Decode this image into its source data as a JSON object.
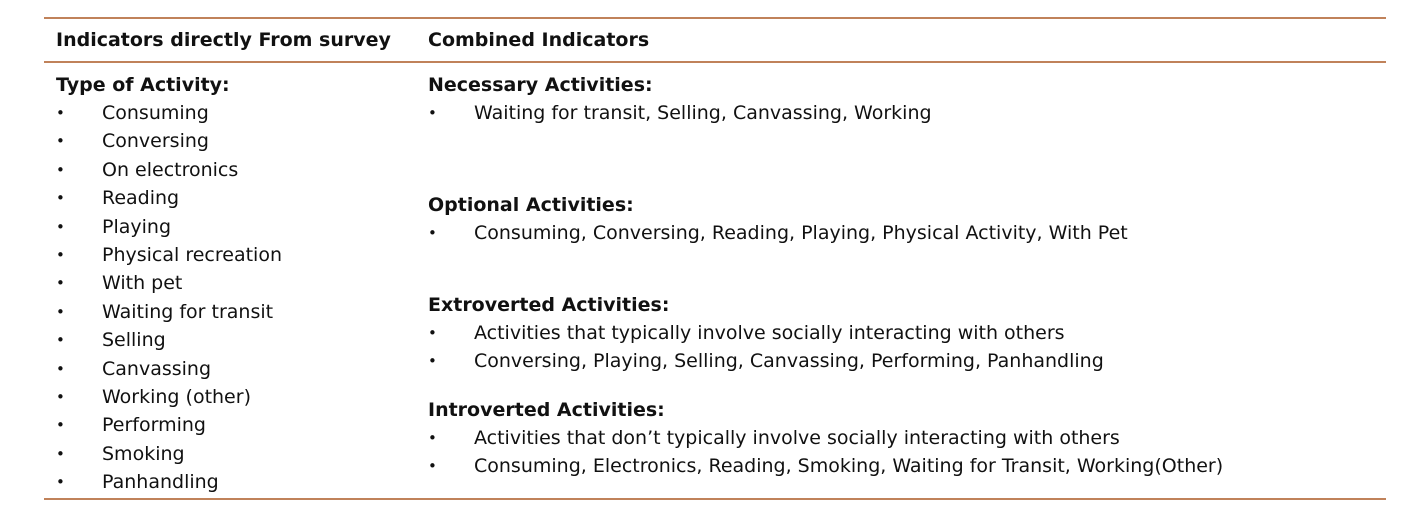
{
  "table": {
    "header_left": "Indicators directly From survey",
    "header_right": "Combined Indicators",
    "left": {
      "title": "Type of Activity:",
      "items": [
        "Consuming",
        "Conversing",
        "On electronics",
        "Reading",
        "Playing",
        "Physical recreation",
        "With pet",
        "Waiting for transit",
        "Selling",
        "Canvassing",
        "Working (other)",
        "Performing",
        "Smoking",
        "Panhandling"
      ]
    },
    "right": {
      "necessary": {
        "title": "Necessary Activities:",
        "items": [
          "Waiting for transit, Selling, Canvassing, Working"
        ]
      },
      "optional": {
        "title": "Optional Activities:",
        "items": [
          "Consuming, Conversing, Reading, Playing, Physical Activity, With Pet"
        ]
      },
      "extroverted": {
        "title": "Extroverted Activities:",
        "items": [
          "Activities that typically involve socially interacting with others",
          "Conversing, Playing, Selling, Canvassing, Performing, Panhandling"
        ]
      },
      "introverted": {
        "title": "Introverted Activities:",
        "items": [
          "Activities that don’t typically involve socially interacting with others",
          "Consuming, Electronics, Reading, Smoking, Waiting for Transit, Working(Other)"
        ]
      }
    },
    "bullet_glyph": "•",
    "rule_color": "#c0825a"
  }
}
